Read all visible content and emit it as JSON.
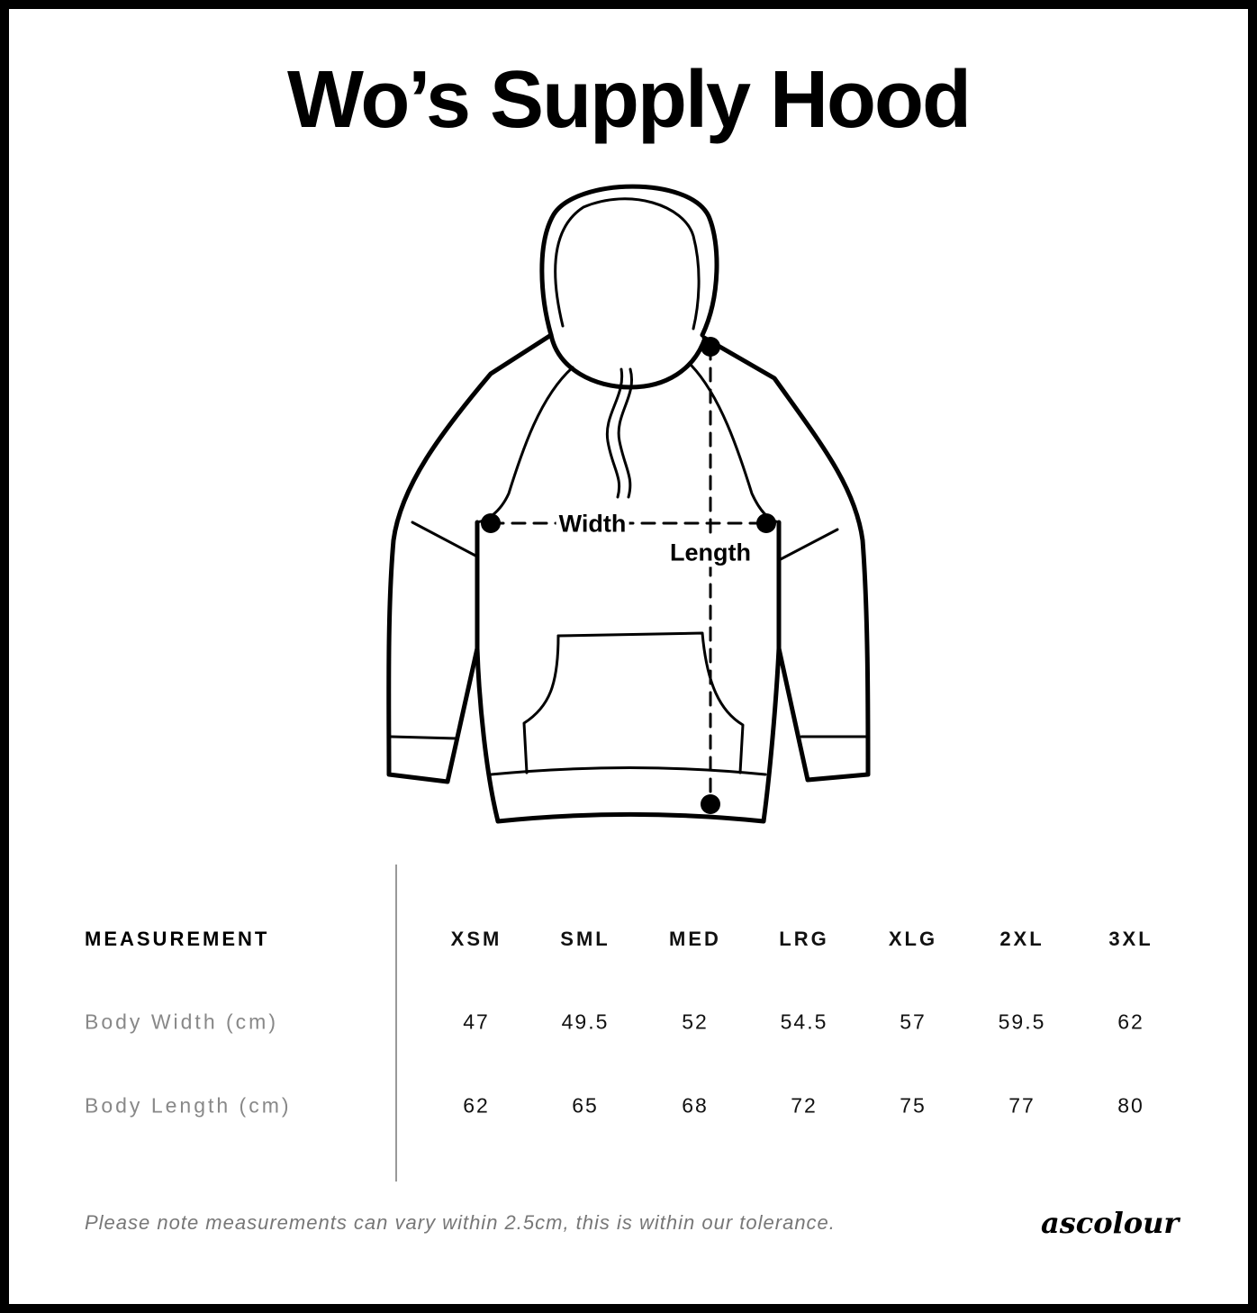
{
  "title": "Wo’s Supply Hood",
  "diagram": {
    "width_label": "Width",
    "length_label": "Length"
  },
  "table": {
    "header_label": "MEASUREMENT",
    "sizes": [
      "XSM",
      "SML",
      "MED",
      "LRG",
      "XLG",
      "2XL",
      "3XL"
    ],
    "rows": [
      {
        "label": "Body Width (cm)",
        "values": [
          "47",
          "49.5",
          "52",
          "54.5",
          "57",
          "59.5",
          "62"
        ]
      },
      {
        "label": "Body Length (cm)",
        "values": [
          "62",
          "65",
          "68",
          "72",
          "75",
          "77",
          "80"
        ]
      }
    ]
  },
  "note": "Please note measurements can vary within 2.5cm, this is within our tolerance.",
  "logo": "ascolour"
}
